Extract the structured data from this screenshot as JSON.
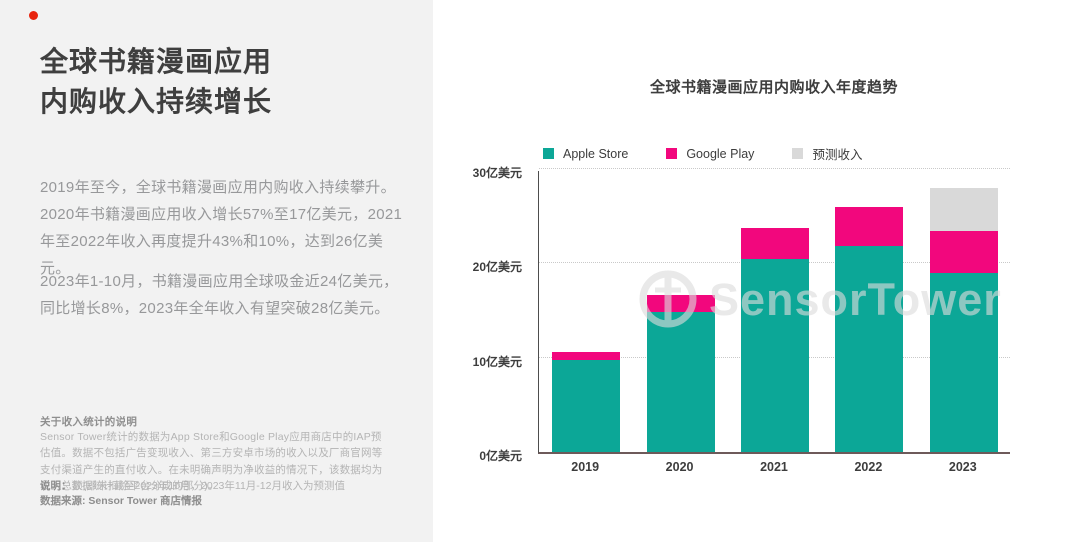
{
  "page": {
    "bg_left": "#f2f2f2",
    "bg_right": "#ffffff",
    "accent_dot_color": "#e8240e"
  },
  "left_panel": {
    "title_lines": [
      "全球书籍漫画应用",
      "内购收入持续增长"
    ],
    "paragraphs": [
      "2019年至今，全球书籍漫画应用内购收入持续攀升。2020年书籍漫画应用收入增长57%至17亿美元，2021年至2022年收入再度提升43%和10%，达到26亿美元。",
      "2023年1-10月，书籍漫画应用全球吸金近24亿美元，同比增长8%，2023年全年收入有望突破28亿美元。"
    ],
    "note_heading": "关于收入统计的说明",
    "note_body": "Sensor Tower统计的数据为App Store和Google Play应用商店中的IAP预估值。数据不包括广告变现收入、第三方安卓市场的收入以及厂商官网等支付渠道产生的直付收入。在未明确声明为净收益的情况下，该数据均为收入总额(即未扣除平台分成的部分)。",
    "caption_label": "说明：",
    "caption_text": "数据统计截至2023年10月，2023年11月-12月收入为预测值",
    "source_label": "数据来源: Sensor Tower 商店情报"
  },
  "chart_data": {
    "type": "bar",
    "stacked": true,
    "title": "全球书籍漫画应用内购收入年度趋势",
    "categories": [
      "2019",
      "2020",
      "2021",
      "2022",
      "2023"
    ],
    "series": [
      {
        "name": "Apple Store",
        "color": "#0ca797",
        "values": [
          9.8,
          14.8,
          20.5,
          21.8,
          19.0
        ]
      },
      {
        "name": "Google Play",
        "color": "#f2077d",
        "values": [
          0.8,
          1.8,
          3.2,
          4.2,
          4.4
        ]
      },
      {
        "name": "预测收入",
        "color": "#d9d9d9",
        "values": [
          0,
          0,
          0,
          0,
          4.6
        ]
      }
    ],
    "unit": "亿美元",
    "yticks": [
      0,
      10,
      20,
      30
    ],
    "ytick_labels": [
      "0亿美元",
      "10亿美元",
      "20亿美元",
      "30亿美元"
    ],
    "ylim": [
      0,
      30
    ],
    "grid": "dotted-horizontal",
    "legend_position": "top",
    "watermark": "SensorTower"
  }
}
